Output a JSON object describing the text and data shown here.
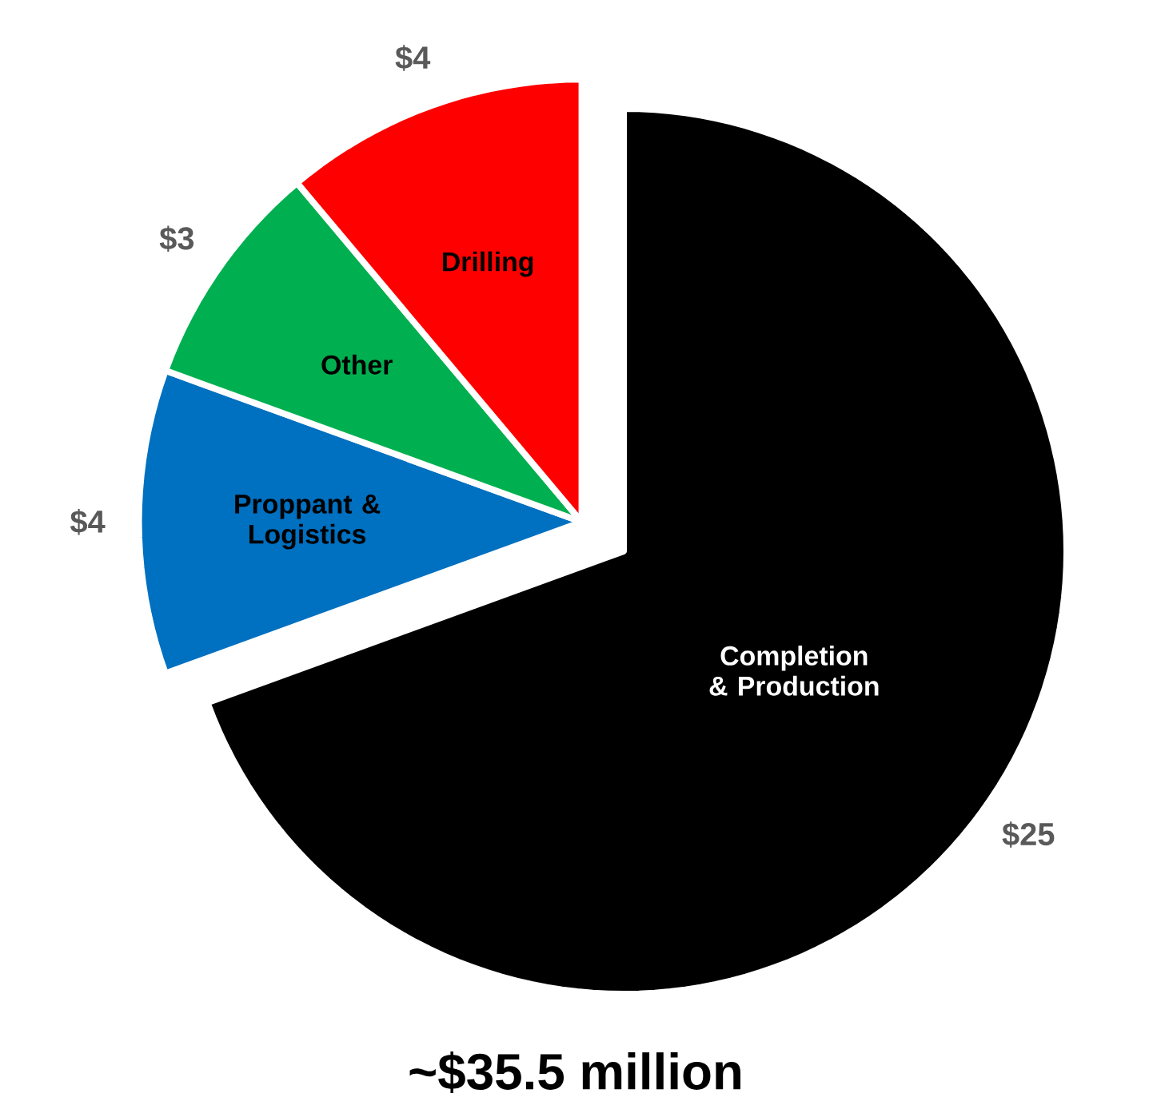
{
  "chart_data": {
    "type": "pie",
    "title": "~$35.5 million",
    "categories": [
      "Completion & Production",
      "Proppant & Logistics",
      "Other",
      "Drilling"
    ],
    "values": [
      25,
      4,
      3,
      4
    ],
    "colors": [
      "#000000",
      "#0070c0",
      "#00b050",
      "#ff0000"
    ],
    "value_labels": [
      "$25",
      "$4",
      "$3",
      "$4"
    ]
  }
}
